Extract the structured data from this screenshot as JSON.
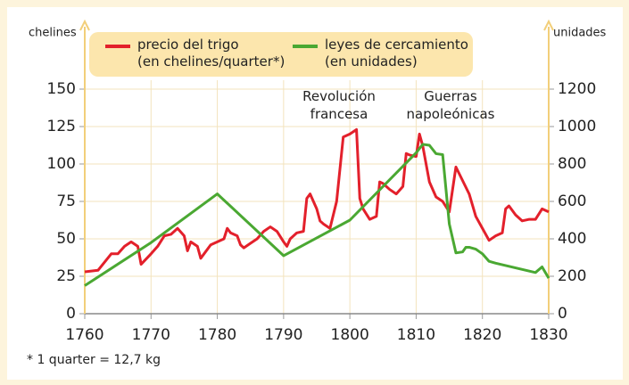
{
  "chart_data": {
    "type": "line",
    "ylabel": "chelines",
    "y2label": "unidades",
    "annotations": [
      "Revolución\nfrancesa",
      "Guerras\nnapoleónicas"
    ],
    "footnote": "* 1 quarter = 12,7 kg",
    "xlim": [
      1760,
      1830
    ],
    "xticks": [
      1760,
      1770,
      1780,
      1790,
      1800,
      1810,
      1820,
      1830
    ],
    "ylim": [
      0,
      150
    ],
    "yticks": [
      0,
      25,
      50,
      75,
      100,
      125,
      150
    ],
    "y2lim": [
      0,
      1200
    ],
    "y2ticks": [
      0,
      200,
      400,
      600,
      800,
      1000,
      1200
    ],
    "grid": true,
    "series": [
      {
        "name": "precio del trigo\n(en chelines/quarter*)",
        "color": "#e3202b",
        "x": [
          1760,
          1762,
          1764,
          1765,
          1766,
          1767,
          1768,
          1768.5,
          1770,
          1771,
          1772,
          1773,
          1774,
          1775,
          1775.5,
          1776,
          1777,
          1777.5,
          1778,
          1779,
          1780,
          1781,
          1781.5,
          1782,
          1783,
          1783.5,
          1784,
          1785,
          1786,
          1787,
          1788,
          1789,
          1790,
          1790.5,
          1791,
          1792,
          1793,
          1793.5,
          1794,
          1795,
          1795.5,
          1796,
          1797,
          1798,
          1799,
          1800,
          1801,
          1801.5,
          1802,
          1803,
          1804,
          1804.5,
          1805,
          1806,
          1807,
          1808,
          1808.5,
          1809,
          1810,
          1810.5,
          1811,
          1812,
          1813,
          1814,
          1815,
          1816,
          1818,
          1819,
          1820,
          1821,
          1822,
          1823,
          1823.5,
          1824,
          1825,
          1826,
          1827,
          1828,
          1829,
          1830
        ],
        "values": [
          28,
          29,
          40,
          40,
          45,
          48,
          45,
          33,
          40,
          45,
          52,
          53,
          57,
          52,
          42,
          48,
          45,
          37,
          40,
          46,
          48,
          50,
          57,
          54,
          52,
          46,
          44,
          47,
          50,
          55,
          58,
          55,
          48,
          45,
          50,
          54,
          55,
          77,
          80,
          70,
          62,
          60,
          57,
          75,
          118,
          120,
          123,
          77,
          70,
          63,
          65,
          88,
          87,
          83,
          80,
          85,
          107,
          106,
          105,
          120,
          112,
          88,
          78,
          75,
          68,
          98,
          80,
          65,
          57,
          49,
          52,
          54,
          70,
          72,
          66,
          62,
          63,
          63,
          70,
          68
        ]
      },
      {
        "name": "leyes de cercamiento\n(en unidades)",
        "color": "#4aa832",
        "axis": "y2",
        "x": [
          1760,
          1770,
          1780,
          1790,
          1800,
          1810,
          1811,
          1812,
          1813,
          1814,
          1815,
          1816,
          1817,
          1817.5,
          1818,
          1819,
          1820,
          1821,
          1822,
          1828,
          1829,
          1830
        ],
        "values": [
          150,
          380,
          640,
          310,
          500,
          860,
          905,
          900,
          855,
          850,
          480,
          325,
          330,
          355,
          355,
          345,
          320,
          280,
          270,
          220,
          250,
          190
        ]
      }
    ]
  }
}
